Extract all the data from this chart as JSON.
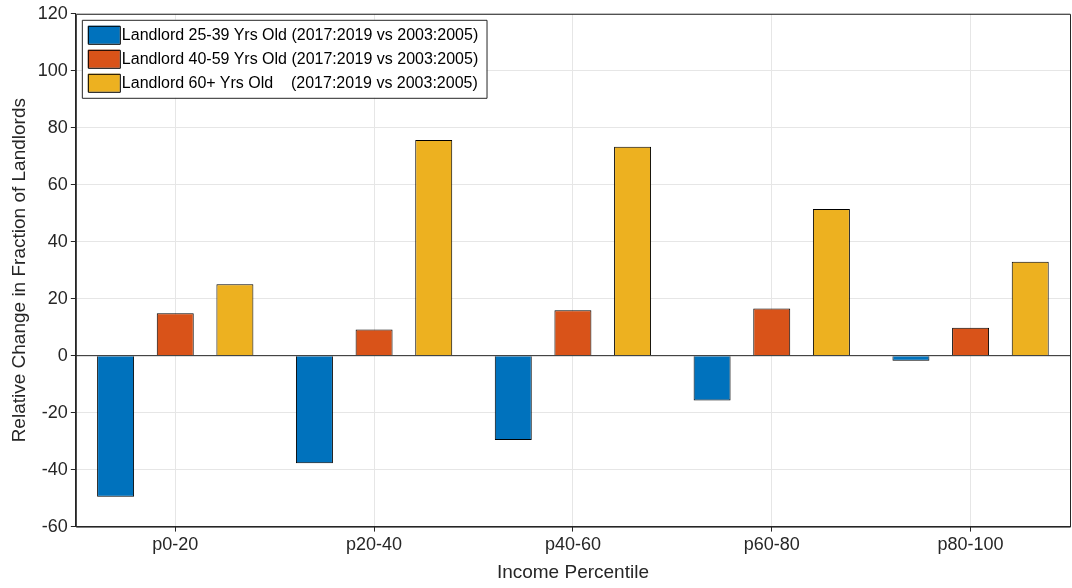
{
  "chart_data": {
    "type": "bar",
    "xlabel": "Income Percentile",
    "ylabel": "Relative Change in Fraction of Landlords",
    "categories": [
      "p0-20",
      "p20-40",
      "p40-60",
      "p60-80",
      "p80-100"
    ],
    "series": [
      {
        "name": "Landlord 25-39 Yrs Old (2017:2019 vs 2003:2005)",
        "color": "#0072bd",
        "values": [
          -49.5,
          -37.8,
          -29.6,
          -15.7,
          -1.8
        ]
      },
      {
        "name": "Landlord 40-59 Yrs Old (2017:2019 vs 2003:2005)",
        "color": "#d95319",
        "values": [
          14.9,
          9.2,
          15.9,
          16.6,
          9.8
        ]
      },
      {
        "name": "Landlord 60+ Yrs Old    (2017:2019 vs 2003:2005)",
        "color": "#edb120",
        "values": [
          25.1,
          75.7,
          73.3,
          51.5,
          33.0
        ]
      }
    ],
    "ylim": [
      -60,
      120
    ],
    "yticks": [
      -60,
      -40,
      -20,
      0,
      20,
      40,
      60,
      80,
      100,
      120
    ],
    "grid": true,
    "legend": "top left"
  }
}
